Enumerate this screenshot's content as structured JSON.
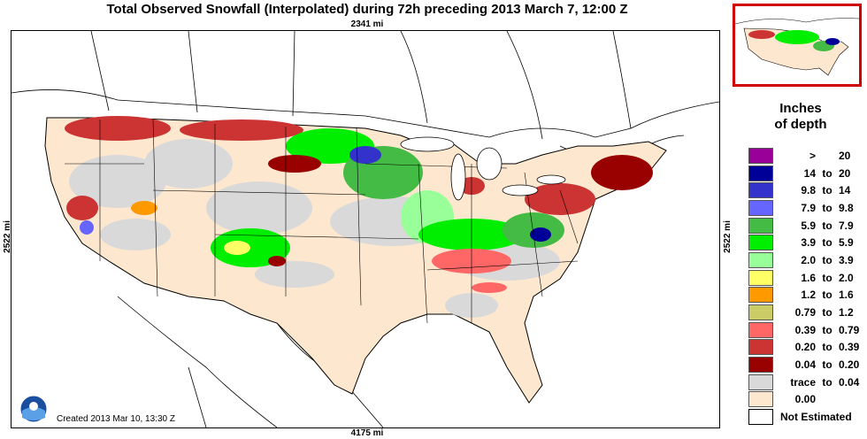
{
  "header": {
    "title": "Total Observed Snowfall (Interpolated) during 72h preceding 2013 March 7, 12:00 Z",
    "top_distance": "2341 mi",
    "bottom_distance": "4175 mi",
    "left_distance": "2522 mi",
    "right_distance": "2522 mi"
  },
  "legend": {
    "title_line1": "Inches",
    "title_line2": "of depth",
    "items": [
      {
        "lo": ">",
        "mid": "",
        "hi": "20",
        "color": "#990099"
      },
      {
        "lo": "14",
        "mid": "to",
        "hi": "20",
        "color": "#000099"
      },
      {
        "lo": "9.8",
        "mid": "to",
        "hi": "14",
        "color": "#3333cc"
      },
      {
        "lo": "7.9",
        "mid": "to",
        "hi": "9.8",
        "color": "#6666ff"
      },
      {
        "lo": "5.9",
        "mid": "to",
        "hi": "7.9",
        "color": "#44bb44"
      },
      {
        "lo": "3.9",
        "mid": "to",
        "hi": "5.9",
        "color": "#00ee00"
      },
      {
        "lo": "2.0",
        "mid": "to",
        "hi": "3.9",
        "color": "#99ff99"
      },
      {
        "lo": "1.6",
        "mid": "to",
        "hi": "2.0",
        "color": "#ffff66"
      },
      {
        "lo": "1.2",
        "mid": "to",
        "hi": "1.6",
        "color": "#ff9900"
      },
      {
        "lo": "0.79",
        "mid": "to",
        "hi": "1.2",
        "color": "#cccc66"
      },
      {
        "lo": "0.39",
        "mid": "to",
        "hi": "0.79",
        "color": "#ff6666"
      },
      {
        "lo": "0.20",
        "mid": "to",
        "hi": "0.39",
        "color": "#cc3333"
      },
      {
        "lo": "0.04",
        "mid": "to",
        "hi": "0.20",
        "color": "#990000"
      },
      {
        "lo": "trace",
        "mid": "to",
        "hi": "0.04",
        "color": "#d9d9d9"
      },
      {
        "lo": "0.00",
        "mid": "",
        "hi": "",
        "color": "#fde8cf"
      }
    ],
    "not_estimated": "Not Estimated"
  },
  "footer": {
    "created": "Created 2013 Mar 10, 13:30 Z",
    "logo_text": "NOAA"
  }
}
